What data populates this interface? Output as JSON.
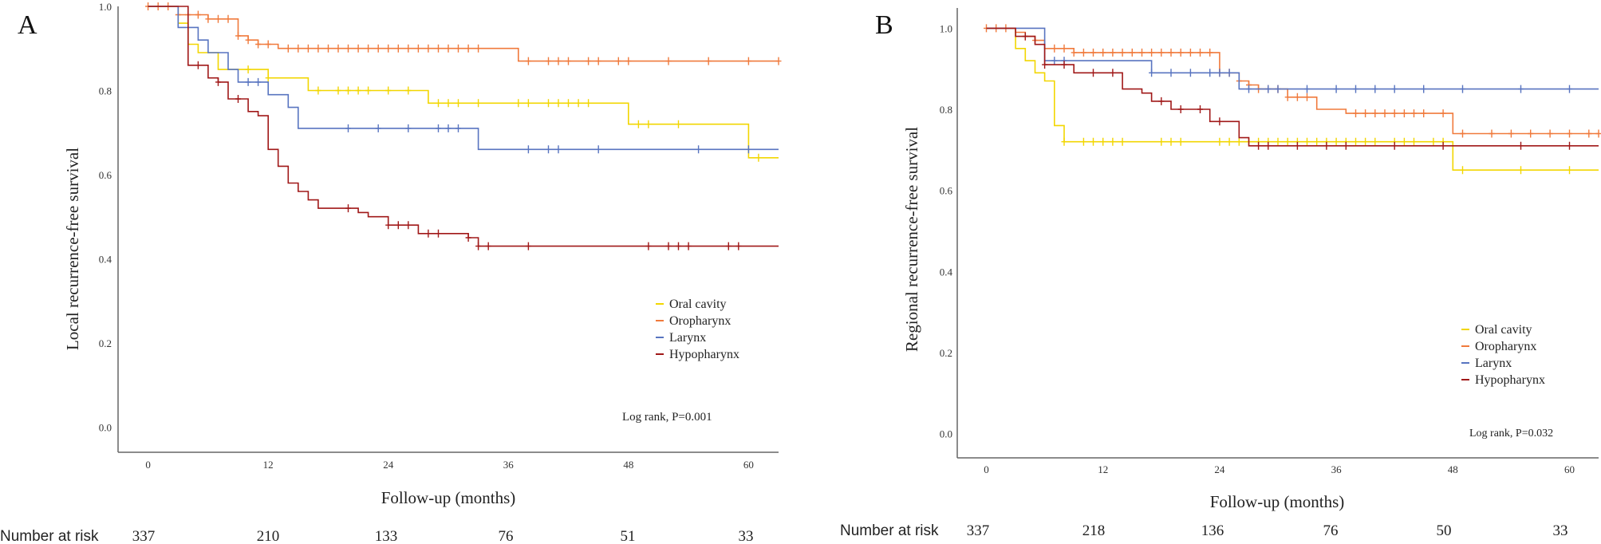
{
  "panels": [
    {
      "panel_label": "A",
      "number_at_risk_label": "Number at risk",
      "number_at_risk": [
        "337",
        "210",
        "133",
        "76",
        "51",
        "33"
      ],
      "annotation": "Log rank, P=0.001"
    },
    {
      "panel_label": "B",
      "number_at_risk_label": "Number at risk",
      "number_at_risk": [
        "337",
        "218",
        "136",
        "76",
        "50",
        "33"
      ],
      "annotation": "Log rank, P=0.032"
    }
  ],
  "colors": {
    "oral_cavity": "#f2d600",
    "oropharynx": "#f07a3c",
    "larynx": "#5874c0",
    "hypopharynx": "#a01818"
  },
  "chart_data": [
    {
      "type": "line",
      "subtype": "kaplan-meier step",
      "title": "",
      "xlabel": "Follow-up (months)",
      "ylabel": "Local recurrence-free survival",
      "xlim": [
        -3,
        63
      ],
      "ylim": [
        -0.06,
        1.0
      ],
      "xticks": [
        0,
        12,
        24,
        36,
        48,
        60
      ],
      "xtick_labels": [
        "0",
        "12",
        "24",
        "36",
        "48",
        "60"
      ],
      "yticks": [
        0.0,
        0.2,
        0.4,
        0.6,
        0.8,
        1.0
      ],
      "ytick_labels": [
        "0.0",
        "0.2",
        "0.4",
        "0.6",
        "0.8",
        "1.0"
      ],
      "legend": [
        "Oral cavity",
        "Oropharynx",
        "Larynx",
        "Hypopharynx"
      ],
      "legend_position": "right",
      "series": [
        {
          "name": "Oral cavity",
          "color_key": "oral_cavity",
          "steps": [
            [
              0,
              1.0
            ],
            [
              3,
              0.96
            ],
            [
              4,
              0.91
            ],
            [
              5,
              0.89
            ],
            [
              7,
              0.85
            ],
            [
              12,
              0.83
            ],
            [
              16,
              0.8
            ],
            [
              28,
              0.77
            ],
            [
              48,
              0.72
            ],
            [
              60,
              0.64
            ],
            [
              63,
              0.64
            ]
          ],
          "censors": [
            10,
            12,
            17,
            19,
            20,
            21,
            22,
            24,
            26,
            29,
            30,
            31,
            33,
            37,
            38,
            40,
            41,
            42,
            43,
            44,
            49,
            50,
            53,
            61
          ]
        },
        {
          "name": "Oropharynx",
          "color_key": "oropharynx",
          "steps": [
            [
              0,
              1.0
            ],
            [
              3,
              0.98
            ],
            [
              6,
              0.97
            ],
            [
              9,
              0.93
            ],
            [
              10,
              0.92
            ],
            [
              11,
              0.91
            ],
            [
              13,
              0.9
            ],
            [
              37,
              0.87
            ],
            [
              63,
              0.87
            ]
          ],
          "censors": [
            0,
            1,
            2,
            3,
            4,
            5,
            6,
            7,
            8,
            9,
            10,
            11,
            12,
            14,
            15,
            16,
            17,
            18,
            19,
            20,
            21,
            22,
            23,
            24,
            25,
            26,
            27,
            28,
            29,
            30,
            31,
            32,
            33,
            38,
            40,
            41,
            42,
            44,
            45,
            47,
            48,
            52,
            56,
            60,
            63
          ]
        },
        {
          "name": "Larynx",
          "color_key": "larynx",
          "steps": [
            [
              0,
              1.0
            ],
            [
              3,
              0.95
            ],
            [
              5,
              0.92
            ],
            [
              6,
              0.89
            ],
            [
              8,
              0.85
            ],
            [
              9,
              0.82
            ],
            [
              12,
              0.79
            ],
            [
              14,
              0.76
            ],
            [
              15,
              0.71
            ],
            [
              33,
              0.66
            ],
            [
              63,
              0.66
            ]
          ],
          "censors": [
            10,
            11,
            20,
            23,
            26,
            29,
            30,
            31,
            38,
            40,
            41,
            45,
            55,
            60
          ]
        },
        {
          "name": "Hypopharynx",
          "color_key": "hypopharynx",
          "steps": [
            [
              0,
              1.0
            ],
            [
              4,
              0.86
            ],
            [
              6,
              0.83
            ],
            [
              7,
              0.82
            ],
            [
              8,
              0.78
            ],
            [
              10,
              0.75
            ],
            [
              11,
              0.74
            ],
            [
              12,
              0.66
            ],
            [
              13,
              0.62
            ],
            [
              14,
              0.58
            ],
            [
              15,
              0.56
            ],
            [
              16,
              0.54
            ],
            [
              17,
              0.52
            ],
            [
              20,
              0.52
            ],
            [
              21,
              0.51
            ],
            [
              22,
              0.5
            ],
            [
              24,
              0.48
            ],
            [
              27,
              0.46
            ],
            [
              31,
              0.46
            ],
            [
              32,
              0.45
            ],
            [
              33,
              0.43
            ],
            [
              63,
              0.43
            ]
          ],
          "censors": [
            5,
            7,
            9,
            20,
            24,
            25,
            26,
            28,
            29,
            32,
            33,
            34,
            38,
            50,
            52,
            53,
            54,
            58,
            59
          ]
        }
      ]
    },
    {
      "type": "line",
      "subtype": "kaplan-meier step",
      "title": "",
      "xlabel": "Follow-up (months)",
      "ylabel": "Regional recurrence-free survival",
      "xlim": [
        -3,
        63
      ],
      "ylim": [
        -0.06,
        1.05
      ],
      "xticks": [
        0,
        12,
        24,
        36,
        48,
        60
      ],
      "xtick_labels": [
        "0",
        "12",
        "24",
        "36",
        "48",
        "60"
      ],
      "yticks": [
        0.0,
        0.2,
        0.4,
        0.6,
        0.8,
        1.0
      ],
      "ytick_labels": [
        "0.0",
        "0.2",
        "0.4",
        "0.6",
        "0.8",
        "1.0"
      ],
      "legend": [
        "Oral cavity",
        "Oropharynx",
        "Larynx",
        "Hypopharynx"
      ],
      "legend_position": "bottom-right",
      "series": [
        {
          "name": "Oral cavity",
          "color_key": "oral_cavity",
          "steps": [
            [
              0,
              1.0
            ],
            [
              3,
              0.95
            ],
            [
              4,
              0.92
            ],
            [
              5,
              0.89
            ],
            [
              6,
              0.87
            ],
            [
              7,
              0.76
            ],
            [
              8,
              0.72
            ],
            [
              48,
              0.65
            ],
            [
              63,
              0.65
            ]
          ],
          "censors": [
            8,
            10,
            11,
            12,
            13,
            14,
            18,
            19,
            20,
            24,
            25,
            26,
            27,
            28,
            29,
            30,
            31,
            32,
            33,
            34,
            35,
            36,
            37,
            38,
            39,
            40,
            42,
            43,
            44,
            46,
            47,
            49,
            55,
            60
          ]
        },
        {
          "name": "Oropharynx",
          "color_key": "oropharynx",
          "steps": [
            [
              0,
              1.0
            ],
            [
              3,
              0.99
            ],
            [
              4,
              0.98
            ],
            [
              5,
              0.97
            ],
            [
              6,
              0.95
            ],
            [
              9,
              0.94
            ],
            [
              24,
              0.89
            ],
            [
              26,
              0.87
            ],
            [
              27,
              0.86
            ],
            [
              28,
              0.85
            ],
            [
              31,
              0.83
            ],
            [
              34,
              0.8
            ],
            [
              37,
              0.79
            ],
            [
              48,
              0.74
            ],
            [
              63,
              0.74
            ]
          ],
          "censors": [
            0,
            1,
            2,
            4,
            5,
            7,
            8,
            9,
            10,
            11,
            12,
            13,
            14,
            15,
            16,
            17,
            18,
            19,
            20,
            21,
            22,
            23,
            24,
            25,
            26,
            27,
            28,
            29,
            30,
            31,
            32,
            33,
            38,
            39,
            40,
            41,
            42,
            43,
            44,
            45,
            47,
            49,
            52,
            54,
            56,
            58,
            60,
            62,
            63
          ]
        },
        {
          "name": "Larynx",
          "color_key": "larynx",
          "steps": [
            [
              0,
              1.0
            ],
            [
              6,
              0.92
            ],
            [
              17,
              0.89
            ],
            [
              26,
              0.85
            ],
            [
              63,
              0.85
            ]
          ],
          "censors": [
            7,
            8,
            17,
            19,
            21,
            23,
            24,
            25,
            27,
            29,
            30,
            33,
            36,
            38,
            40,
            42,
            45,
            49,
            55,
            60
          ]
        },
        {
          "name": "Hypopharynx",
          "color_key": "hypopharynx",
          "steps": [
            [
              0,
              1.0
            ],
            [
              3,
              0.98
            ],
            [
              5,
              0.96
            ],
            [
              6,
              0.91
            ],
            [
              9,
              0.89
            ],
            [
              14,
              0.85
            ],
            [
              16,
              0.84
            ],
            [
              17,
              0.82
            ],
            [
              19,
              0.8
            ],
            [
              23,
              0.77
            ],
            [
              26,
              0.73
            ],
            [
              27,
              0.71
            ],
            [
              63,
              0.71
            ]
          ],
          "censors": [
            4,
            6,
            8,
            11,
            13,
            18,
            20,
            22,
            24,
            28,
            29,
            32,
            35,
            37,
            42,
            47,
            55,
            60
          ]
        }
      ]
    }
  ]
}
